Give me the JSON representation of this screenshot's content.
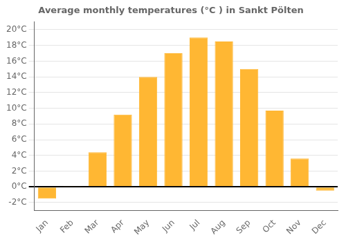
{
  "chart_data": {
    "type": "bar",
    "title": "Average monthly temperatures (°C ) in Sankt Pölten",
    "categories": [
      "Jan",
      "Feb",
      "Mar",
      "Apr",
      "May",
      "Jun",
      "Jul",
      "Aug",
      "Sep",
      "Oct",
      "Nov",
      "Dec"
    ],
    "values": [
      -1.5,
      0.1,
      4.4,
      9.2,
      14.0,
      17.0,
      19.0,
      18.5,
      15.0,
      9.7,
      3.6,
      -0.5
    ],
    "color": "#FFB733",
    "ylim": [
      -3,
      21
    ],
    "yticks": [
      {
        "value": -2,
        "label": "-2°C"
      },
      {
        "value": 0,
        "label": "0°C"
      },
      {
        "value": 2,
        "label": "2°C"
      },
      {
        "value": 4,
        "label": "4°C"
      },
      {
        "value": 6,
        "label": "6°C"
      },
      {
        "value": 8,
        "label": "8°C"
      },
      {
        "value": 10,
        "label": "10°C"
      },
      {
        "value": 12,
        "label": "12°C"
      },
      {
        "value": 14,
        "label": "14°C"
      },
      {
        "value": 16,
        "label": "16°C"
      },
      {
        "value": 18,
        "label": "18°C"
      },
      {
        "value": 20,
        "label": "20°C"
      }
    ],
    "grid": true
  }
}
